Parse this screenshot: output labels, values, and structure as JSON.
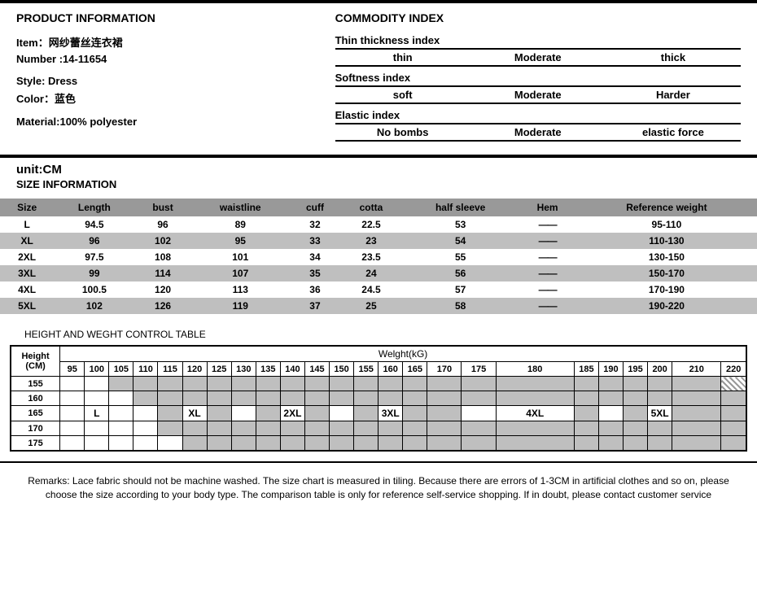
{
  "product": {
    "title": "PRODUCT INFORMATION",
    "item_label": "Item：网纱蕾丝连衣裙",
    "number_label": "Number :14-11654",
    "style_label": "Style: Dress",
    "color_label": "Color：蓝色",
    "material_label": "Material:100% polyester"
  },
  "commodity": {
    "title": "COMMODITY INDEX",
    "thin": {
      "title": "Thin thickness index",
      "a": "thin",
      "b": "Moderate",
      "c": "thick"
    },
    "soft": {
      "title": "Softness index",
      "a": "soft",
      "b": "Moderate",
      "c": "Harder"
    },
    "elastic": {
      "title": "Elastic index",
      "a": "No bombs",
      "b": "Moderate",
      "c": "elastic force"
    }
  },
  "unit": "unit:CM",
  "size_title": "SIZE INFORMATION",
  "size": {
    "columns": [
      "Size",
      "Length",
      "bust",
      "waistline",
      "cuff",
      "cotta",
      "half sleeve",
      "Hem",
      "Reference weight"
    ],
    "rows": [
      [
        "L",
        "94.5",
        "96",
        "89",
        "32",
        "22.5",
        "53",
        "——",
        "95-110"
      ],
      [
        "XL",
        "96",
        "102",
        "95",
        "33",
        "23",
        "54",
        "——",
        "110-130"
      ],
      [
        "2XL",
        "97.5",
        "108",
        "101",
        "34",
        "23.5",
        "55",
        "——",
        "130-150"
      ],
      [
        "3XL",
        "99",
        "114",
        "107",
        "35",
        "24",
        "56",
        "——",
        "150-170"
      ],
      [
        "4XL",
        "100.5",
        "120",
        "113",
        "36",
        "24.5",
        "57",
        "——",
        "170-190"
      ],
      [
        "5XL",
        "102",
        "126",
        "119",
        "37",
        "25",
        "58",
        "——",
        "190-220"
      ]
    ]
  },
  "hw": {
    "title": "HEIGHT AND WEGHT CONTROL TABLE",
    "weight_head": "Welght(kG)",
    "height_head": "Height (CM)",
    "weights": [
      "95",
      "100",
      "105",
      "110",
      "115",
      "120",
      "125",
      "130",
      "135",
      "140",
      "145",
      "150",
      "155",
      "160",
      "165",
      "170",
      "175",
      "180",
      "185",
      "190",
      "195",
      "200",
      "210",
      "220"
    ],
    "heights": [
      "155",
      "160",
      "165",
      "170",
      "175"
    ],
    "labels": {
      "L": "L",
      "XL": "XL",
      "XL2": "2XL",
      "XL3": "3XL",
      "XL4": "4XL",
      "XL5": "5XL"
    }
  },
  "remarks": "Remarks: Lace fabric should not be machine washed. The size chart is measured in tiling. Because there are errors of 1-3CM in artificial clothes and so on, please choose the size according to your body type. The comparison table is only for reference self-service shopping. If in doubt, please contact customer service",
  "style": {
    "header_bg": "#999999",
    "alt_bg": "#bfbfbf"
  }
}
